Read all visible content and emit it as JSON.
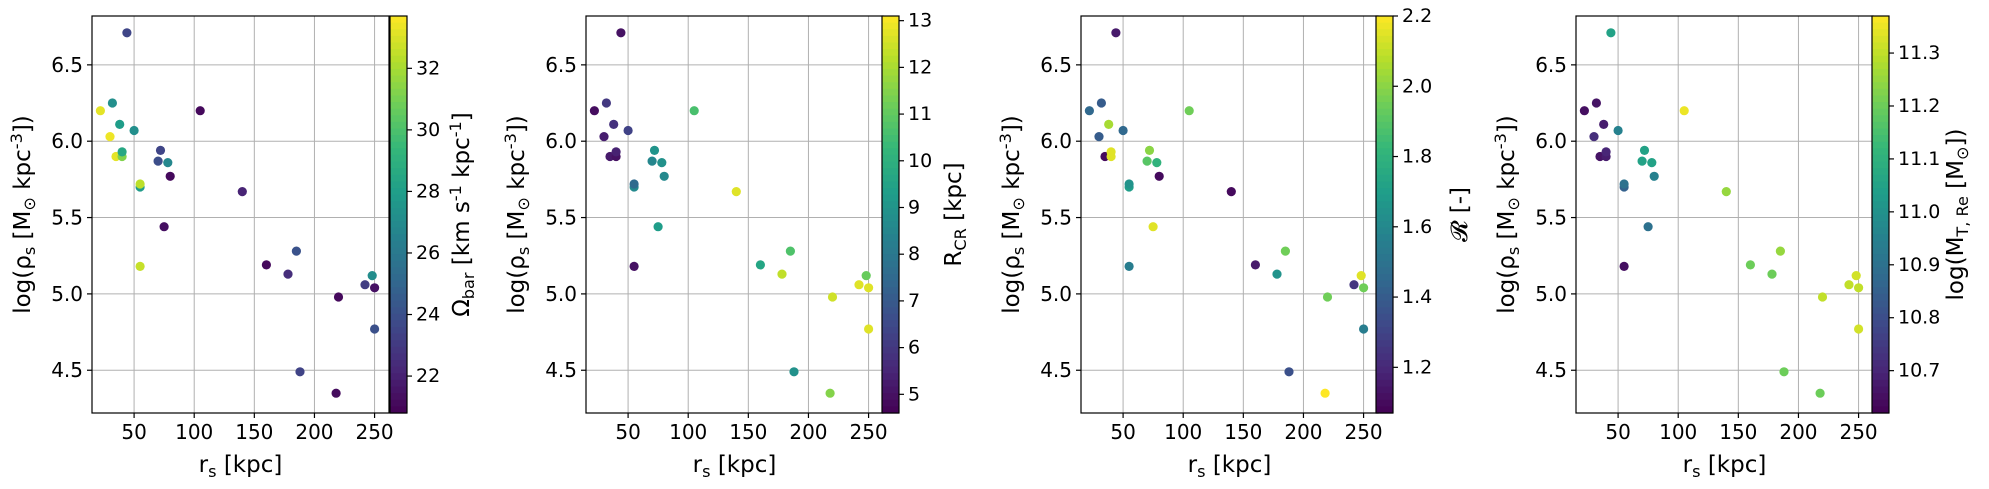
{
  "chart_data": [
    {
      "type": "scatter",
      "xlabel": "r_s [kpc]",
      "ylabel": "log(ρ_s [M_⊙ kpc^{-3}])",
      "xlim": [
        15,
        262
      ],
      "ylim": [
        4.22,
        6.82
      ],
      "xticks": [
        50,
        100,
        150,
        200,
        250
      ],
      "yticks": [
        4.5,
        5.0,
        5.5,
        6.0,
        6.5
      ],
      "grid": true,
      "x": [
        22,
        30,
        32,
        35,
        38,
        40,
        40,
        44,
        50,
        55,
        55,
        55,
        70,
        72,
        75,
        78,
        80,
        105,
        140,
        160,
        178,
        185,
        188,
        218,
        220,
        242,
        248,
        250,
        250
      ],
      "y": [
        6.2,
        6.03,
        6.25,
        5.9,
        6.11,
        5.9,
        5.93,
        6.71,
        6.07,
        5.7,
        5.72,
        5.18,
        5.87,
        5.94,
        5.44,
        5.86,
        5.77,
        6.2,
        5.67,
        5.19,
        5.13,
        5.28,
        4.49,
        4.35,
        4.98,
        5.06,
        5.12,
        5.04,
        4.77
      ],
      "colorbar": {
        "label": "Ω_bar [km s^{-1} kpc^{-1}]",
        "range": [
          20.8,
          33.7
        ],
        "ticks": [
          22,
          24,
          26,
          28,
          30,
          32
        ],
        "values": [
          33.2,
          33.4,
          27.2,
          33.2,
          27.9,
          31.2,
          28.5,
          23.5,
          27.2,
          27.8,
          32.4,
          32.6,
          23.9,
          23.5,
          21.3,
          26.8,
          21.1,
          21.1,
          22.1,
          21.1,
          22.5,
          24.1,
          23.4,
          21.2,
          21.1,
          23.2,
          27.1,
          21.4,
          24.0
        ]
      }
    },
    {
      "type": "scatter",
      "xlabel": "r_s [kpc]",
      "ylabel": "log(ρ_s [M_⊙ kpc^{-3}])",
      "xlim": [
        15,
        262
      ],
      "ylim": [
        4.22,
        6.82
      ],
      "xticks": [
        50,
        100,
        150,
        200,
        250
      ],
      "yticks": [
        4.5,
        5.0,
        5.5,
        6.0,
        6.5
      ],
      "grid": true,
      "x": [
        22,
        30,
        32,
        35,
        38,
        40,
        40,
        44,
        50,
        55,
        55,
        55,
        70,
        72,
        75,
        78,
        80,
        105,
        140,
        160,
        178,
        185,
        188,
        218,
        220,
        242,
        248,
        250,
        250
      ],
      "y": [
        6.2,
        6.03,
        6.25,
        5.9,
        6.11,
        5.9,
        5.93,
        6.71,
        6.07,
        5.7,
        5.72,
        5.18,
        5.87,
        5.94,
        5.44,
        5.86,
        5.77,
        6.2,
        5.67,
        5.19,
        5.13,
        5.28,
        4.49,
        4.35,
        4.98,
        5.06,
        5.12,
        5.04,
        4.77
      ],
      "colorbar": {
        "label": "R_CR [kpc]",
        "range": [
          4.6,
          13.1
        ],
        "ticks": [
          5,
          6,
          7,
          8,
          9,
          10,
          11,
          12,
          13
        ],
        "values": [
          4.9,
          5.3,
          6.0,
          5.2,
          5.8,
          5.0,
          5.4,
          5.0,
          6.3,
          8.6,
          7.5,
          5.0,
          8.5,
          9.0,
          9.3,
          8.9,
          8.6,
          10.6,
          12.7,
          9.6,
          12.3,
          10.7,
          8.9,
          11.5,
          12.5,
          12.7,
          11.1,
          12.7,
          12.7
        ]
      }
    },
    {
      "type": "scatter",
      "xlabel": "r_s [kpc]",
      "ylabel": "log(ρ_s [M_⊙ kpc^{-3}])",
      "xlim": [
        15,
        262
      ],
      "ylim": [
        4.22,
        6.82
      ],
      "xticks": [
        50,
        100,
        150,
        200,
        250
      ],
      "yticks": [
        4.5,
        5.0,
        5.5,
        6.0,
        6.5
      ],
      "grid": true,
      "x": [
        22,
        30,
        32,
        35,
        38,
        40,
        40,
        44,
        50,
        55,
        55,
        55,
        70,
        72,
        75,
        78,
        80,
        105,
        140,
        160,
        178,
        185,
        188,
        218,
        220,
        242,
        248,
        250,
        250
      ],
      "y": [
        6.2,
        6.03,
        6.25,
        5.9,
        6.11,
        5.9,
        5.93,
        6.71,
        6.07,
        5.7,
        5.72,
        5.18,
        5.87,
        5.94,
        5.44,
        5.86,
        5.77,
        6.2,
        5.67,
        5.19,
        5.13,
        5.28,
        4.49,
        4.35,
        4.98,
        5.06,
        5.12,
        5.04,
        4.77
      ],
      "colorbar": {
        "label": "𝓡 [-]",
        "range": [
          1.07,
          2.2
        ],
        "ticks": [
          1.2,
          1.4,
          1.6,
          1.8,
          2.0,
          2.2
        ],
        "values": [
          1.45,
          1.4,
          1.4,
          1.1,
          2.05,
          2.15,
          2.15,
          1.15,
          1.45,
          1.7,
          1.65,
          1.55,
          1.9,
          2.0,
          2.15,
          1.8,
          1.1,
          1.95,
          1.1,
          1.15,
          1.65,
          1.95,
          1.35,
          2.2,
          1.95,
          1.25,
          2.15,
          1.95,
          1.55
        ]
      }
    },
    {
      "type": "scatter",
      "xlabel": "r_s [kpc]",
      "ylabel": "log(ρ_s [M_⊙ kpc^{-3}])",
      "xlim": [
        15,
        262
      ],
      "ylim": [
        4.22,
        6.82
      ],
      "xticks": [
        50,
        100,
        150,
        200,
        250
      ],
      "yticks": [
        4.5,
        5.0,
        5.5,
        6.0,
        6.5
      ],
      "grid": true,
      "x": [
        22,
        30,
        32,
        35,
        38,
        40,
        40,
        44,
        50,
        55,
        55,
        55,
        70,
        72,
        75,
        78,
        80,
        105,
        140,
        160,
        178,
        185,
        188,
        218,
        220,
        242,
        248,
        250,
        250
      ],
      "y": [
        6.2,
        6.03,
        6.25,
        5.9,
        6.11,
        5.9,
        5.93,
        6.71,
        6.07,
        5.7,
        5.72,
        5.18,
        5.87,
        5.94,
        5.44,
        5.86,
        5.77,
        6.2,
        5.67,
        5.19,
        5.13,
        5.28,
        4.49,
        4.35,
        4.98,
        5.06,
        5.12,
        5.04,
        4.77
      ],
      "colorbar": {
        "label": "log(M_{T, Re} [M_⊙])",
        "range": [
          10.62,
          11.37
        ],
        "ticks": [
          10.7,
          10.8,
          10.9,
          11.0,
          11.1,
          11.2,
          11.3
        ],
        "values": [
          10.65,
          10.72,
          10.66,
          10.66,
          10.68,
          10.68,
          10.7,
          11.05,
          10.95,
          10.85,
          10.9,
          10.65,
          11.05,
          11.05,
          10.9,
          11.05,
          10.95,
          11.35,
          11.25,
          11.2,
          11.2,
          11.25,
          11.2,
          11.2,
          11.3,
          11.3,
          11.32,
          11.3,
          11.32
        ]
      }
    }
  ]
}
